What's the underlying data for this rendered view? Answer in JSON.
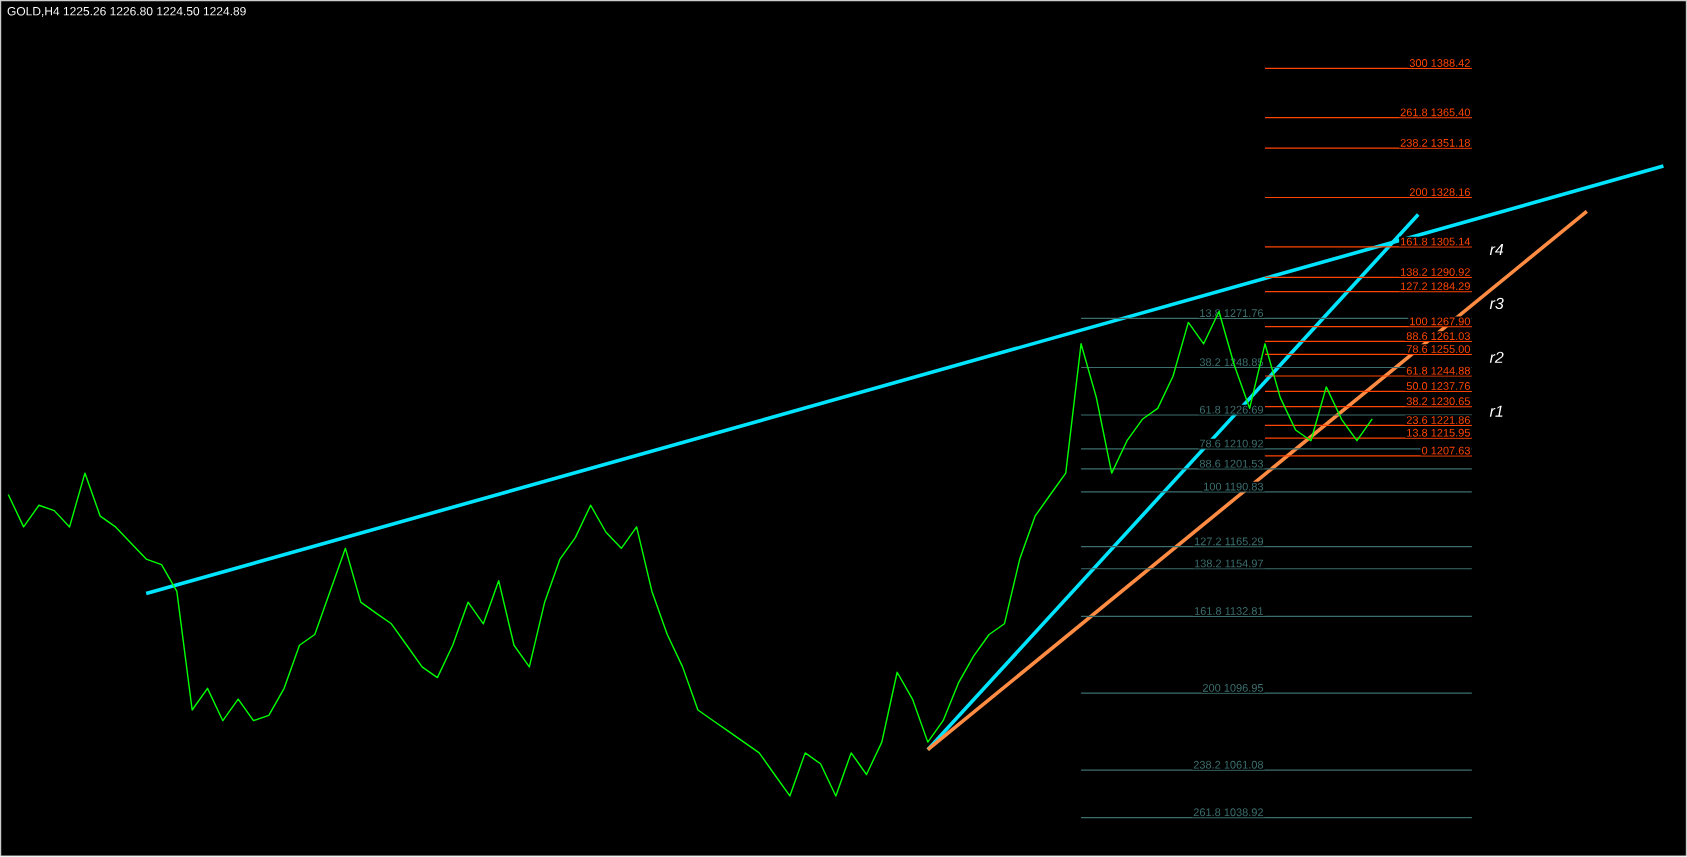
{
  "chart_data": {
    "type": "line",
    "title": "GOLD,H4  1225.26 1226.80 1224.50 1224.89",
    "categories": [
      null,
      null,
      null,
      null,
      null,
      null,
      null,
      null,
      null,
      null,
      null,
      null,
      null,
      null,
      null,
      null,
      null,
      null,
      null,
      null,
      null,
      null,
      null,
      null,
      null,
      null,
      null,
      null,
      null,
      null,
      null,
      null,
      null,
      null,
      null,
      null,
      null,
      null,
      null,
      null,
      null,
      null,
      null,
      null,
      null,
      null,
      null,
      null,
      null,
      null,
      null,
      null,
      null,
      null,
      null,
      null,
      null,
      null,
      null,
      null,
      null,
      null,
      null,
      null,
      null,
      null,
      null,
      null,
      null,
      null,
      null,
      null,
      null,
      null,
      null,
      null,
      null,
      null,
      null,
      null,
      null,
      null,
      null,
      null,
      null,
      null,
      null,
      null,
      null,
      null,
      null,
      null,
      null,
      null,
      null,
      null,
      null,
      null,
      null,
      null,
      null,
      null,
      null,
      null,
      null,
      null,
      null,
      null,
      null,
      null
    ],
    "ylim": [
      1021,
      1420
    ],
    "tick_labels": false,
    "series": [
      {
        "color": "#00ff00",
        "values": [
          1189.6,
          1174.5,
          1184.6,
          1182.1,
          1174.5,
          1199.6,
          1179.5,
          1174.5,
          1167.0,
          1159.5,
          1156.9,
          1144.4,
          1089.1,
          1099.2,
          1084.1,
          1094.2,
          1084.1,
          1086.6,
          1099.2,
          1119.3,
          1124.3,
          1144.4,
          1164.5,
          1139.4,
          1134.3,
          1129.3,
          1119.3,
          1109.2,
          1104.2,
          1119.3,
          1139.4,
          1129.3,
          1149.4,
          1119.3,
          1109.2,
          1139.4,
          1159.5,
          1169.5,
          1184.6,
          1172.0,
          1164.5,
          1174.5,
          1144.4,
          1124.3,
          1109.2,
          1089.1,
          1084.1,
          1079.1,
          1074.1,
          1069.1,
          1059.0,
          1049.0,
          1069.1,
          1064.0,
          1049.0,
          1069.1,
          1059.0,
          1074.1,
          1106.7,
          1094.2,
          1074.1,
          1084.1,
          1101.7,
          1114.3,
          1124.3,
          1129.3,
          1159.5,
          1179.5,
          1189.6,
          1199.6,
          1259.9,
          1234.8,
          1199.6,
          1214.7,
          1224.7,
          1229.8,
          1244.8,
          1269.9,
          1259.9,
          1275.0,
          1249.9,
          1229.8,
          1259.9,
          1234.8,
          1219.7,
          1214.7,
          1239.8,
          1224.7,
          1214.7,
          1224.9,
          null,
          null,
          null,
          null,
          null,
          null,
          null,
          null,
          null,
          null,
          null,
          null,
          null,
          null,
          null,
          null,
          null,
          null,
          null,
          null
        ]
      },
      {
        "color": "#00e5ff",
        "values": [
          null,
          null,
          null,
          null,
          null,
          null,
          null,
          null,
          null,
          1143.4,
          null,
          null,
          null,
          null,
          null,
          null,
          null,
          null,
          null,
          null,
          null,
          null,
          null,
          null,
          null,
          null,
          null,
          null,
          null,
          null,
          null,
          null,
          null,
          null,
          null,
          null,
          null,
          null,
          null,
          null,
          null,
          null,
          null,
          null,
          null,
          null,
          null,
          null,
          null,
          null,
          null,
          null,
          null,
          null,
          null,
          null,
          null,
          null,
          null,
          null,
          null,
          null,
          null,
          null,
          null,
          null,
          null,
          null,
          null,
          null,
          null,
          null,
          null,
          null,
          null,
          null,
          null,
          null,
          null,
          null,
          null,
          null,
          null,
          null,
          null,
          null,
          null,
          null,
          null,
          null,
          null,
          null,
          null,
          null,
          null,
          null,
          null,
          null,
          null,
          null,
          null,
          null,
          null,
          null,
          null,
          null,
          null,
          null,
          1342.8,
          null
        ]
      },
      {
        "color": "#00e5ff",
        "values": [
          null,
          null,
          null,
          null,
          null,
          null,
          null,
          null,
          null,
          null,
          null,
          null,
          null,
          null,
          null,
          null,
          null,
          null,
          null,
          null,
          null,
          null,
          null,
          null,
          null,
          null,
          null,
          null,
          null,
          null,
          null,
          null,
          null,
          null,
          null,
          null,
          null,
          null,
          null,
          null,
          null,
          null,
          null,
          null,
          null,
          null,
          null,
          null,
          null,
          null,
          null,
          null,
          null,
          null,
          null,
          null,
          null,
          null,
          null,
          null,
          1070.6,
          null,
          null,
          null,
          null,
          null,
          null,
          null,
          null,
          null,
          null,
          null,
          null,
          null,
          null,
          null,
          null,
          null,
          null,
          null,
          null,
          null,
          null,
          null,
          null,
          null,
          null,
          null,
          null,
          null,
          null,
          null,
          1320.2,
          null,
          null,
          null,
          null,
          null,
          null,
          null,
          null,
          null,
          null,
          null,
          null,
          null,
          null,
          null,
          null,
          null
        ]
      },
      {
        "color": "#ff8c42",
        "values": [
          null,
          null,
          null,
          null,
          null,
          null,
          null,
          null,
          null,
          null,
          null,
          null,
          null,
          null,
          null,
          null,
          null,
          null,
          null,
          null,
          null,
          null,
          null,
          null,
          null,
          null,
          null,
          null,
          null,
          null,
          null,
          null,
          null,
          null,
          null,
          null,
          null,
          null,
          null,
          null,
          null,
          null,
          null,
          null,
          null,
          null,
          null,
          null,
          null,
          null,
          null,
          null,
          null,
          null,
          null,
          null,
          null,
          null,
          null,
          null,
          1070.6,
          null,
          null,
          null,
          null,
          null,
          null,
          null,
          null,
          null,
          null,
          null,
          null,
          null,
          null,
          null,
          null,
          null,
          null,
          null,
          null,
          null,
          null,
          null,
          null,
          null,
          null,
          null,
          null,
          null,
          null,
          null,
          null,
          null,
          null,
          null,
          null,
          null,
          null,
          null,
          null,
          null,
          null,
          1321.7,
          null,
          null,
          null,
          null,
          null,
          null
        ]
      }
    ],
    "ref_lines": [
      {
        "axis": "y",
        "value": 1388.42,
        "label": "300 1388.42",
        "color": "#ff4500"
      },
      {
        "axis": "y",
        "value": 1365.4,
        "label": "261.8 1365.40",
        "color": "#ff4500"
      },
      {
        "axis": "y",
        "value": 1351.18,
        "label": "238.2 1351.18",
        "color": "#ff4500"
      },
      {
        "axis": "y",
        "value": 1328.16,
        "label": "200 1328.16",
        "color": "#ff4500"
      },
      {
        "axis": "y",
        "value": 1305.14,
        "label": "161.8 1305.14",
        "color": "#ff4500"
      },
      {
        "axis": "y",
        "value": 1290.92,
        "label": "138.2 1290.92",
        "color": "#ff4500"
      },
      {
        "axis": "y",
        "value": 1284.29,
        "label": "127.2 1284.29",
        "color": "#ff4500"
      },
      {
        "axis": "y",
        "value": 1267.9,
        "label": "100 1267.90",
        "color": "#ff4500"
      },
      {
        "axis": "y",
        "value": 1261.03,
        "label": "88.6 1261.03",
        "color": "#ff4500"
      },
      {
        "axis": "y",
        "value": 1255.0,
        "label": "78.6 1255.00",
        "color": "#ff4500"
      },
      {
        "axis": "y",
        "value": 1244.88,
        "label": "61.8 1244.88",
        "color": "#ff4500"
      },
      {
        "axis": "y",
        "value": 1237.76,
        "label": "50.0 1237.76",
        "color": "#ff4500"
      },
      {
        "axis": "y",
        "value": 1230.65,
        "label": "38.2 1230.65",
        "color": "#ff4500"
      },
      {
        "axis": "y",
        "value": 1221.86,
        "label": "23.6 1221.86",
        "color": "#ff4500"
      },
      {
        "axis": "y",
        "value": 1215.95,
        "label": "13.8 1215.95",
        "color": "#ff4500"
      },
      {
        "axis": "y",
        "value": 1207.63,
        "label": "0 1207.63",
        "color": "#ff4500"
      },
      {
        "axis": "y",
        "value": 1271.76,
        "label": "13.8 1271.76",
        "color": "#3c6e6e"
      },
      {
        "axis": "y",
        "value": 1248.85,
        "label": "38.2 1248.85",
        "color": "#3c6e6e"
      },
      {
        "axis": "y",
        "value": 1226.69,
        "label": "61.8 1226.69",
        "color": "#3c6e6e"
      },
      {
        "axis": "y",
        "value": 1210.92,
        "label": "78.6 1210.92",
        "color": "#3c6e6e"
      },
      {
        "axis": "y",
        "value": 1201.53,
        "label": "88.6 1201.53",
        "color": "#3c6e6e"
      },
      {
        "axis": "y",
        "value": 1190.83,
        "label": "100 1190.83",
        "color": "#3c6e6e"
      },
      {
        "axis": "y",
        "value": 1165.29,
        "label": "127.2 1165.29",
        "color": "#3c6e6e"
      },
      {
        "axis": "y",
        "value": 1154.97,
        "label": "138.2 1154.97",
        "color": "#3c6e6e"
      },
      {
        "axis": "y",
        "value": 1132.81,
        "label": "161.8 1132.81",
        "color": "#3c6e6e"
      },
      {
        "axis": "y",
        "value": 1096.95,
        "label": "200 1096.95",
        "color": "#3c6e6e"
      },
      {
        "axis": "y",
        "value": 1061.08,
        "label": "238.2 1061.08",
        "color": "#3c6e6e"
      },
      {
        "axis": "y",
        "value": 1038.92,
        "label": "261.8 1038.92",
        "color": "#3c6e6e"
      }
    ],
    "annotations": [
      "r1",
      "r2",
      "r3",
      "r4"
    ]
  }
}
